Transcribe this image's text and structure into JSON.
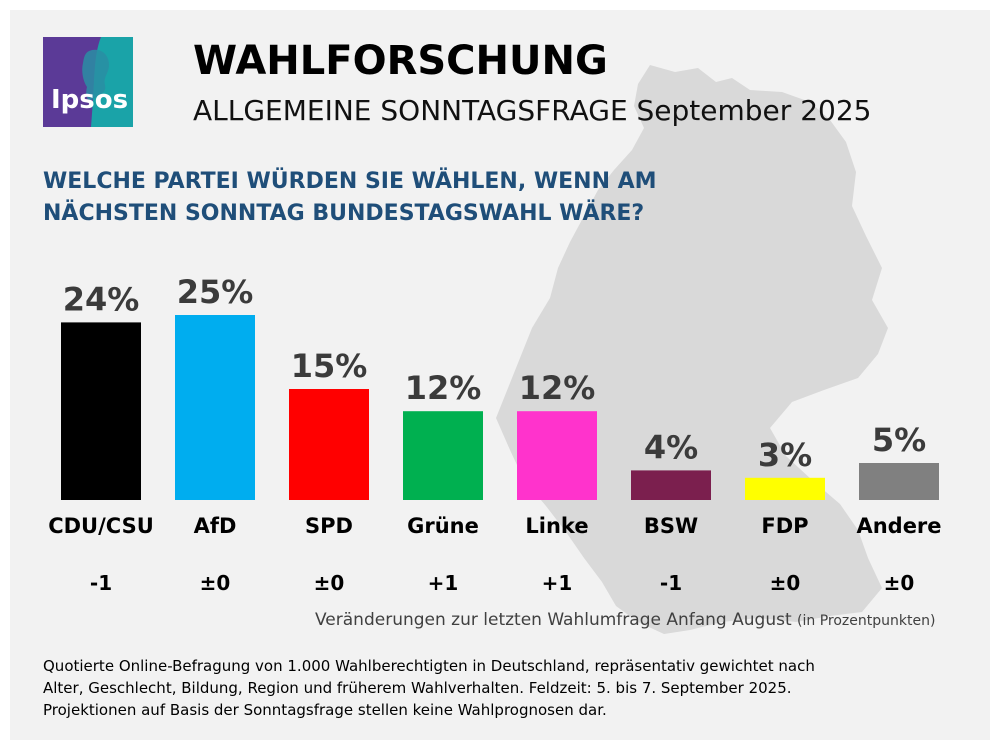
{
  "header": {
    "title": "WAHLFORSCHUNG",
    "subtitle": "ALLGEMEINE SONNTAGSFRAGE September 2025",
    "logo_text": "Ipsos"
  },
  "question": {
    "line1": "WELCHE PARTEI WÜRDEN SIE WÄHLEN, WENN AM",
    "line2": "NÄCHSTEN SONNTAG BUNDESTAGSWAHL WÄRE?"
  },
  "chart_data": {
    "type": "bar",
    "categories": [
      "CDU/CSU",
      "AfD",
      "SPD",
      "Grüne",
      "Linke",
      "BSW",
      "FDP",
      "Andere"
    ],
    "values": [
      24,
      25,
      15,
      12,
      12,
      4,
      3,
      5
    ],
    "value_labels": [
      "24%",
      "25%",
      "15%",
      "12%",
      "12%",
      "4%",
      "3%",
      "5%"
    ],
    "changes": [
      "-1",
      "±0",
      "±0",
      "+1",
      "+1",
      "-1",
      "±0",
      "±0"
    ],
    "colors": [
      "#000000",
      "#00adef",
      "#ff0000",
      "#00b050",
      "#ff33cc",
      "#7b1f4e",
      "#ffff00",
      "#808080"
    ],
    "unit": "%",
    "title": "",
    "xlabel": "",
    "ylabel": ""
  },
  "change_note": {
    "main": "Veränderungen zur letzten Wahlumfrage Anfang August",
    "small": "(in Prozentpunkten)"
  },
  "footnote": {
    "line1": "Quotierte Online-Befragung von 1.000 Wahlberechtigten in Deutschland, repräsentativ gewichtet nach",
    "line2": "Alter, Geschlecht, Bildung, Region und früherem Wahlverhalten. Feldzeit: 5. bis 7. September 2025.",
    "line3": "Projektionen auf Basis der Sonntagsfrage stellen keine Wahlprognosen dar."
  },
  "colors": {
    "background": "#f2f2f2",
    "map": "#d9d9d9",
    "question": "#1f4e79",
    "logo_purple": "#5b3a97",
    "logo_teal": "#1aa3a8"
  }
}
